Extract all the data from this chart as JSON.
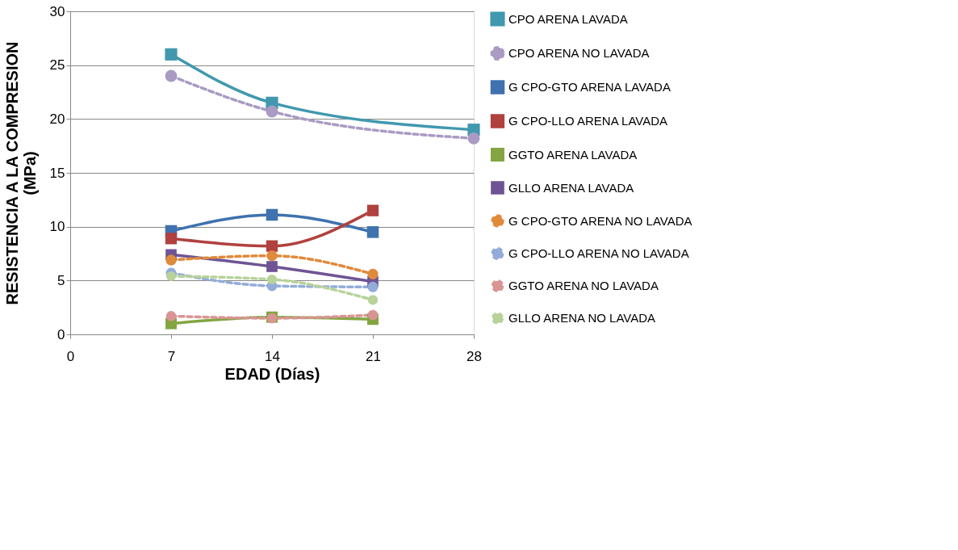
{
  "chart_data": {
    "type": "line",
    "xlabel": "EDAD (Días)",
    "ylabel": "RESISTENCIA A LA COMPRESION (MPa)",
    "xlim": [
      0,
      28
    ],
    "xticks": [
      0,
      7,
      14,
      21,
      28
    ],
    "ylim": [
      0,
      30
    ],
    "yticks": [
      0,
      5,
      10,
      15,
      20,
      25,
      30
    ],
    "grid": "y",
    "legend": "right",
    "series": [
      {
        "name": "CPO ARENA LAVADA",
        "color": "#4198af",
        "marker": "square",
        "line_style": "solid",
        "x": [
          7,
          14,
          28
        ],
        "values": [
          26.0,
          21.5,
          19.0
        ]
      },
      {
        "name": "CPO ARENA NO LAVADA",
        "color": "#a99bc3",
        "marker": "circle",
        "line_style": "dashed",
        "x": [
          7,
          14,
          28
        ],
        "values": [
          24.0,
          20.7,
          18.2
        ]
      },
      {
        "name": "G CPO-GTO ARENA LAVADA",
        "color": "#3f72ae",
        "marker": "square",
        "line_style": "solid",
        "x": [
          7,
          14,
          21
        ],
        "values": [
          9.6,
          11.1,
          9.5
        ]
      },
      {
        "name": "G CPO-LLO ARENA LAVADA",
        "color": "#b0413e",
        "marker": "square",
        "line_style": "solid",
        "x": [
          7,
          14,
          21
        ],
        "values": [
          8.9,
          8.2,
          11.5
        ]
      },
      {
        "name": "GGTO ARENA LAVADA",
        "color": "#84a542",
        "marker": "square",
        "line_style": "solid",
        "x": [
          7,
          14,
          21
        ],
        "values": [
          1.0,
          1.6,
          1.4
        ]
      },
      {
        "name": "GLLO ARENA LAVADA",
        "color": "#6e5494",
        "marker": "square",
        "line_style": "solid",
        "x": [
          7,
          14,
          21
        ],
        "values": [
          7.4,
          6.3,
          4.9
        ]
      },
      {
        "name": "G CPO-GTO ARENA NO LAVADA",
        "color": "#e08a3c",
        "marker": "circle",
        "line_style": "dashed",
        "x": [
          7,
          14,
          21
        ],
        "values": [
          6.9,
          7.3,
          5.6
        ]
      },
      {
        "name": "G CPO-LLO ARENA NO LAVADA",
        "color": "#93acd8",
        "marker": "circle",
        "line_style": "dashed",
        "x": [
          7,
          14,
          21
        ],
        "values": [
          5.7,
          4.5,
          4.4
        ]
      },
      {
        "name": "GGTO ARENA NO LAVADA",
        "color": "#d99594",
        "marker": "circle",
        "line_style": "dashed",
        "x": [
          7,
          14,
          21
        ],
        "values": [
          1.7,
          1.5,
          1.8
        ]
      },
      {
        "name": "GLLO ARENA NO LAVADA",
        "color": "#b8d29a",
        "marker": "circle",
        "line_style": "dashed",
        "x": [
          7,
          14,
          21
        ],
        "values": [
          5.4,
          5.1,
          3.2
        ]
      }
    ]
  }
}
